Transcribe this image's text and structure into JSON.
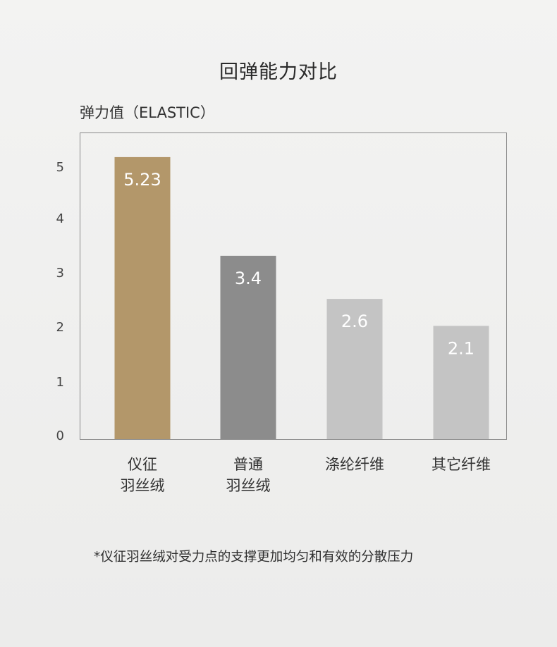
{
  "chart_data": {
    "type": "bar",
    "title": "回弹能力对比",
    "ylabel": "弹力值（ELASTIC）",
    "xlabel": "",
    "ylim": [
      0,
      5.5
    ],
    "yticks": [
      "0",
      "1",
      "2",
      "3",
      "4",
      "5"
    ],
    "categories": [
      "仪征\n羽丝绒",
      "普通\n羽丝绒",
      "涤纶纤维",
      "其它纤维"
    ],
    "values": [
      5.23,
      3.4,
      2.6,
      2.1
    ],
    "value_labels": [
      "5.23",
      "3.4",
      "2.6",
      "2.1"
    ],
    "colors": [
      "#b3976a",
      "#8c8c8c",
      "#c4c4c4",
      "#c4c4c4"
    ],
    "grid": false,
    "legend": "none"
  },
  "footnote": "*仪征羽丝绒对受力点的支撑更加均匀和有效的分散压力"
}
